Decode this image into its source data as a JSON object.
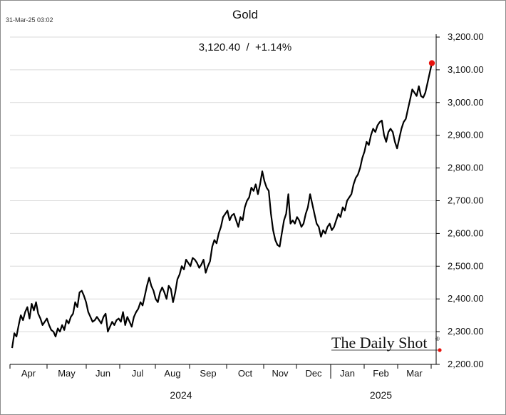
{
  "timestamp": "31-Mar-25 03:02",
  "chart_data": {
    "type": "line",
    "title": "Gold",
    "subtitle": "3,120.40  /  +1.14%",
    "last_value": 3120.4,
    "change_pct": "+1.14%",
    "ylim": [
      2200,
      3200
    ],
    "yticks": [
      "2,200.00",
      "2,300.00",
      "2,400.00",
      "2,500.00",
      "2,600.00",
      "2,700.00",
      "2,800.00",
      "2,900.00",
      "3,000.00",
      "3,100.00",
      "3,200.00"
    ],
    "ytick_values": [
      2200,
      2300,
      2400,
      2500,
      2600,
      2700,
      2800,
      2900,
      3000,
      3100,
      3200
    ],
    "months": [
      "Apr",
      "May",
      "Jun",
      "Jul",
      "Aug",
      "Sep",
      "Oct",
      "Nov",
      "Dec",
      "Jan",
      "Feb",
      "Mar"
    ],
    "years": [
      "2024",
      "2025"
    ],
    "grid": "horizontal",
    "series": [
      {
        "x_start": "2024-04-01",
        "x_end": "2025-03-31",
        "values": [
          2250,
          2295,
          2285,
          2320,
          2350,
          2335,
          2360,
          2375,
          2340,
          2385,
          2365,
          2390,
          2355,
          2340,
          2320,
          2330,
          2340,
          2320,
          2305,
          2300,
          2285,
          2310,
          2300,
          2320,
          2305,
          2335,
          2325,
          2345,
          2355,
          2390,
          2375,
          2420,
          2425,
          2410,
          2390,
          2360,
          2345,
          2330,
          2335,
          2345,
          2335,
          2325,
          2345,
          2355,
          2300,
          2315,
          2330,
          2320,
          2335,
          2340,
          2330,
          2360,
          2320,
          2345,
          2330,
          2315,
          2345,
          2360,
          2370,
          2390,
          2380,
          2410,
          2440,
          2465,
          2440,
          2425,
          2400,
          2390,
          2420,
          2435,
          2420,
          2400,
          2440,
          2430,
          2390,
          2420,
          2460,
          2475,
          2500,
          2490,
          2520,
          2510,
          2500,
          2525,
          2520,
          2510,
          2495,
          2505,
          2520,
          2480,
          2500,
          2515,
          2560,
          2580,
          2570,
          2600,
          2620,
          2650,
          2660,
          2670,
          2640,
          2655,
          2660,
          2640,
          2620,
          2650,
          2640,
          2680,
          2700,
          2710,
          2740,
          2730,
          2750,
          2720,
          2750,
          2790,
          2760,
          2740,
          2730,
          2660,
          2610,
          2580,
          2565,
          2560,
          2600,
          2640,
          2660,
          2720,
          2630,
          2640,
          2630,
          2650,
          2640,
          2620,
          2630,
          2660,
          2680,
          2720,
          2690,
          2660,
          2630,
          2620,
          2590,
          2610,
          2600,
          2620,
          2630,
          2610,
          2620,
          2640,
          2660,
          2650,
          2680,
          2670,
          2700,
          2710,
          2720,
          2750,
          2770,
          2780,
          2800,
          2830,
          2850,
          2880,
          2870,
          2900,
          2920,
          2910,
          2930,
          2940,
          2945,
          2900,
          2880,
          2910,
          2920,
          2910,
          2880,
          2860,
          2890,
          2920,
          2940,
          2950,
          2980,
          3010,
          3040,
          3030,
          3020,
          3050,
          3020,
          3015,
          3030,
          3060,
          3090,
          3120.4
        ]
      }
    ]
  },
  "logo": {
    "text": "The Daily Shot",
    "mark": "®"
  },
  "colors": {
    "line": "#000000",
    "end_dot": "#e8120c",
    "grid": "#d9d9d9",
    "axis": "#000000",
    "frame": "#8c8c8c"
  }
}
